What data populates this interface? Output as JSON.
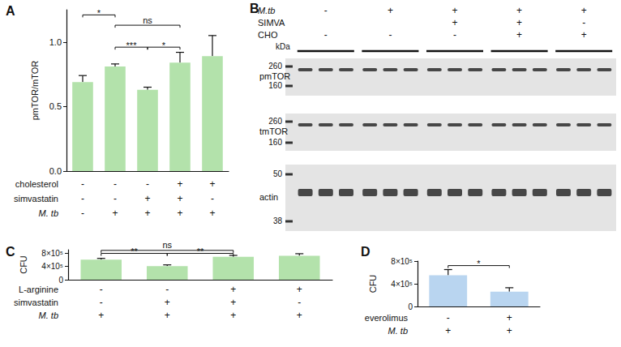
{
  "chart_data": [
    {
      "type": "bar",
      "title": "A",
      "y_label": "pmTOR/mTOR",
      "categories": [
        null,
        null,
        null,
        null,
        null
      ],
      "values": [
        0.69,
        0.81,
        0.63,
        0.84,
        0.89
      ],
      "errors": [
        0.05,
        0.02,
        0.02,
        0.08,
        0.16
      ],
      "color": "#b3e2ab",
      "ylim": [
        0,
        1.25
      ],
      "yticks": [
        {
          "value": 0,
          "label": "0.0"
        },
        0.5,
        {
          "value": 1,
          "label": "1.0"
        }
      ],
      "grid": false,
      "conditions": [
        {
          "label": "cholesterol",
          "signs": [
            "-",
            "-",
            "-",
            "+",
            "+"
          ]
        },
        {
          "label": "simvastatin",
          "signs": [
            "-",
            "-",
            "+",
            "+",
            "-"
          ]
        },
        {
          "label": "M. tb",
          "signs": [
            "-",
            "+",
            "+",
            "+",
            "+"
          ]
        }
      ],
      "comparisons": [
        {
          "from": 0,
          "to": 1,
          "y": 1.21,
          "label": "*"
        },
        {
          "from": 1,
          "to": 3,
          "y": 1.13,
          "label": "ns"
        },
        {
          "from": 1,
          "to": 2,
          "y": 0.96,
          "label": "***"
        },
        {
          "from": 2,
          "to": 3,
          "y": 0.96,
          "label": "*"
        }
      ]
    },
    {
      "type": "bar",
      "title": "C",
      "y_label": "CFU",
      "categories": [
        null,
        null,
        null,
        null
      ],
      "values": [
        600000,
        410000,
        690000,
        720000
      ],
      "errors": [
        40000,
        35000,
        40000,
        60000
      ],
      "color": "#b3e2ab",
      "ylim": [
        0,
        900000
      ],
      "yticks": [
        0,
        {
          "value": 400000,
          "label": "4×10⁵"
        },
        {
          "value": 800000,
          "label": "8×10⁵"
        }
      ],
      "grid": false,
      "conditions": [
        {
          "label": "L-arginine",
          "signs": [
            "-",
            "-",
            "+",
            "+"
          ]
        },
        {
          "label": "simvastatin",
          "signs": [
            "-",
            "+",
            "+",
            "-"
          ]
        },
        {
          "label": "M. tb",
          "signs": [
            "+",
            "+",
            "+",
            "+"
          ]
        }
      ],
      "comparisons": [
        {
          "from": 0,
          "to": 2,
          "y": 880000,
          "label": "ns"
        },
        {
          "from": 0,
          "to": 1,
          "y": 790000,
          "label": "**"
        },
        {
          "from": 1,
          "to": 2,
          "y": 790000,
          "label": "**"
        }
      ]
    },
    {
      "type": "bar",
      "title": "D",
      "y_label": "CFU",
      "categories": [
        null,
        null
      ],
      "values": [
        550000,
        260000
      ],
      "errors": [
        100000,
        70000
      ],
      "color": "#b9d5f0",
      "ylim": [
        0,
        800000
      ],
      "yticks": [
        0,
        {
          "value": 400000,
          "label": "4×10⁵"
        },
        {
          "value": 800000,
          "label": "8×10⁵"
        }
      ],
      "grid": false,
      "conditions": [
        {
          "label": "everolimus",
          "signs": [
            "-",
            "+"
          ]
        },
        {
          "label": "M. tb",
          "signs": [
            "+",
            "+"
          ]
        }
      ],
      "comparisons": [
        {
          "from": 0,
          "to": 1,
          "y": 720000,
          "label": "*"
        }
      ]
    }
  ],
  "blot": {
    "title": "B",
    "unit": "kDa",
    "lanes_per_group": 3,
    "conditions": [
      {
        "label": "M.tb",
        "signs": [
          "-",
          "+",
          "+",
          "+",
          "+"
        ]
      },
      {
        "label": "SIMVA",
        "signs": [
          null,
          null,
          "+",
          "+",
          "-"
        ]
      },
      {
        "label": "CHO",
        "signs": [
          "-",
          "-",
          "-",
          "+",
          "+"
        ]
      }
    ],
    "blots": [
      {
        "label": "pmTOR",
        "markers": [
          260,
          160
        ]
      },
      {
        "label": "tmTOR",
        "markers": [
          260,
          160
        ]
      },
      {
        "label": "actin",
        "markers": [
          50,
          38
        ]
      }
    ]
  }
}
